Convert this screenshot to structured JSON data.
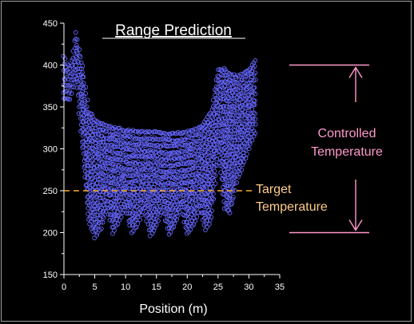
{
  "chart_data": {
    "type": "scatter",
    "title": "Range Prediction",
    "xlabel": "Position (m)",
    "ylabel": "",
    "xlim": [
      0,
      35
    ],
    "ylim": [
      150,
      450
    ],
    "xticks": [
      "0",
      "5",
      "10",
      "15",
      "20",
      "25",
      "30",
      "35"
    ],
    "yticks": [
      "150",
      "200",
      "250",
      "300",
      "350",
      "400",
      "450"
    ],
    "grid": false,
    "marker_color": "#6666ff",
    "target_line": {
      "y": 250,
      "color": "#ffaa33"
    },
    "envelope_upper": [
      [
        0,
        410
      ],
      [
        1,
        395
      ],
      [
        2,
        440
      ],
      [
        3,
        400
      ],
      [
        4,
        345
      ],
      [
        5,
        335
      ],
      [
        6,
        330
      ],
      [
        8,
        325
      ],
      [
        10,
        322
      ],
      [
        12,
        320
      ],
      [
        14,
        320
      ],
      [
        16,
        318
      ],
      [
        18,
        318
      ],
      [
        20,
        320
      ],
      [
        22,
        325
      ],
      [
        23,
        335
      ],
      [
        24,
        345
      ],
      [
        25,
        395
      ],
      [
        26,
        395
      ],
      [
        28,
        385
      ],
      [
        30,
        395
      ],
      [
        31,
        405
      ]
    ],
    "envelope_lower": [
      [
        0,
        360
      ],
      [
        1,
        360
      ],
      [
        2,
        385
      ],
      [
        3,
        300
      ],
      [
        4,
        215
      ],
      [
        5,
        195
      ],
      [
        6,
        205
      ],
      [
        7,
        230
      ],
      [
        8,
        200
      ],
      [
        9,
        215
      ],
      [
        10,
        230
      ],
      [
        11,
        200
      ],
      [
        12,
        210
      ],
      [
        13,
        230
      ],
      [
        14,
        195
      ],
      [
        15,
        210
      ],
      [
        16,
        230
      ],
      [
        17,
        198
      ],
      [
        18,
        210
      ],
      [
        19,
        230
      ],
      [
        20,
        198
      ],
      [
        21,
        210
      ],
      [
        22,
        230
      ],
      [
        23,
        203
      ],
      [
        24,
        220
      ],
      [
        25,
        300
      ],
      [
        26,
        230
      ],
      [
        27,
        225
      ],
      [
        28,
        260
      ],
      [
        30,
        300
      ],
      [
        31,
        320
      ]
    ],
    "annotations": {
      "controlled": [
        "Controlled",
        "Temperature"
      ],
      "target": [
        "Target",
        "Temperature"
      ]
    },
    "annotation_colors": {
      "controlled": "#ff99cc",
      "target": "#ffcc88"
    },
    "controlled_range": [
      200,
      400
    ]
  }
}
